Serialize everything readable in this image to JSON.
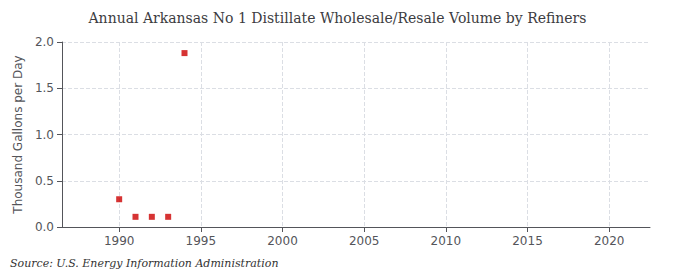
{
  "chart_data": {
    "type": "scatter",
    "title": "Annual Arkansas No 1 Distillate Wholesale/Resale Volume by Refiners",
    "ylabel": "Thousand Gallons per Day",
    "source": "Source: U.S. Energy Information Administration",
    "x": [
      1990,
      1991,
      1992,
      1993,
      1994
    ],
    "values": [
      0.3,
      0.11,
      0.11,
      0.11,
      1.88
    ],
    "color": "#cc0000",
    "marker": "square",
    "xlim": [
      1986.5,
      2022.5
    ],
    "ylim": [
      0.0,
      2.0
    ],
    "xticks": [
      1990,
      1995,
      2000,
      2005,
      2010,
      2015,
      2020
    ],
    "yticks": [
      {
        "value": 0,
        "label": "0.0"
      },
      0.5,
      {
        "value": 1,
        "label": "1.0"
      },
      1.5,
      {
        "value": 2,
        "label": "2.0"
      }
    ],
    "grid": true
  }
}
